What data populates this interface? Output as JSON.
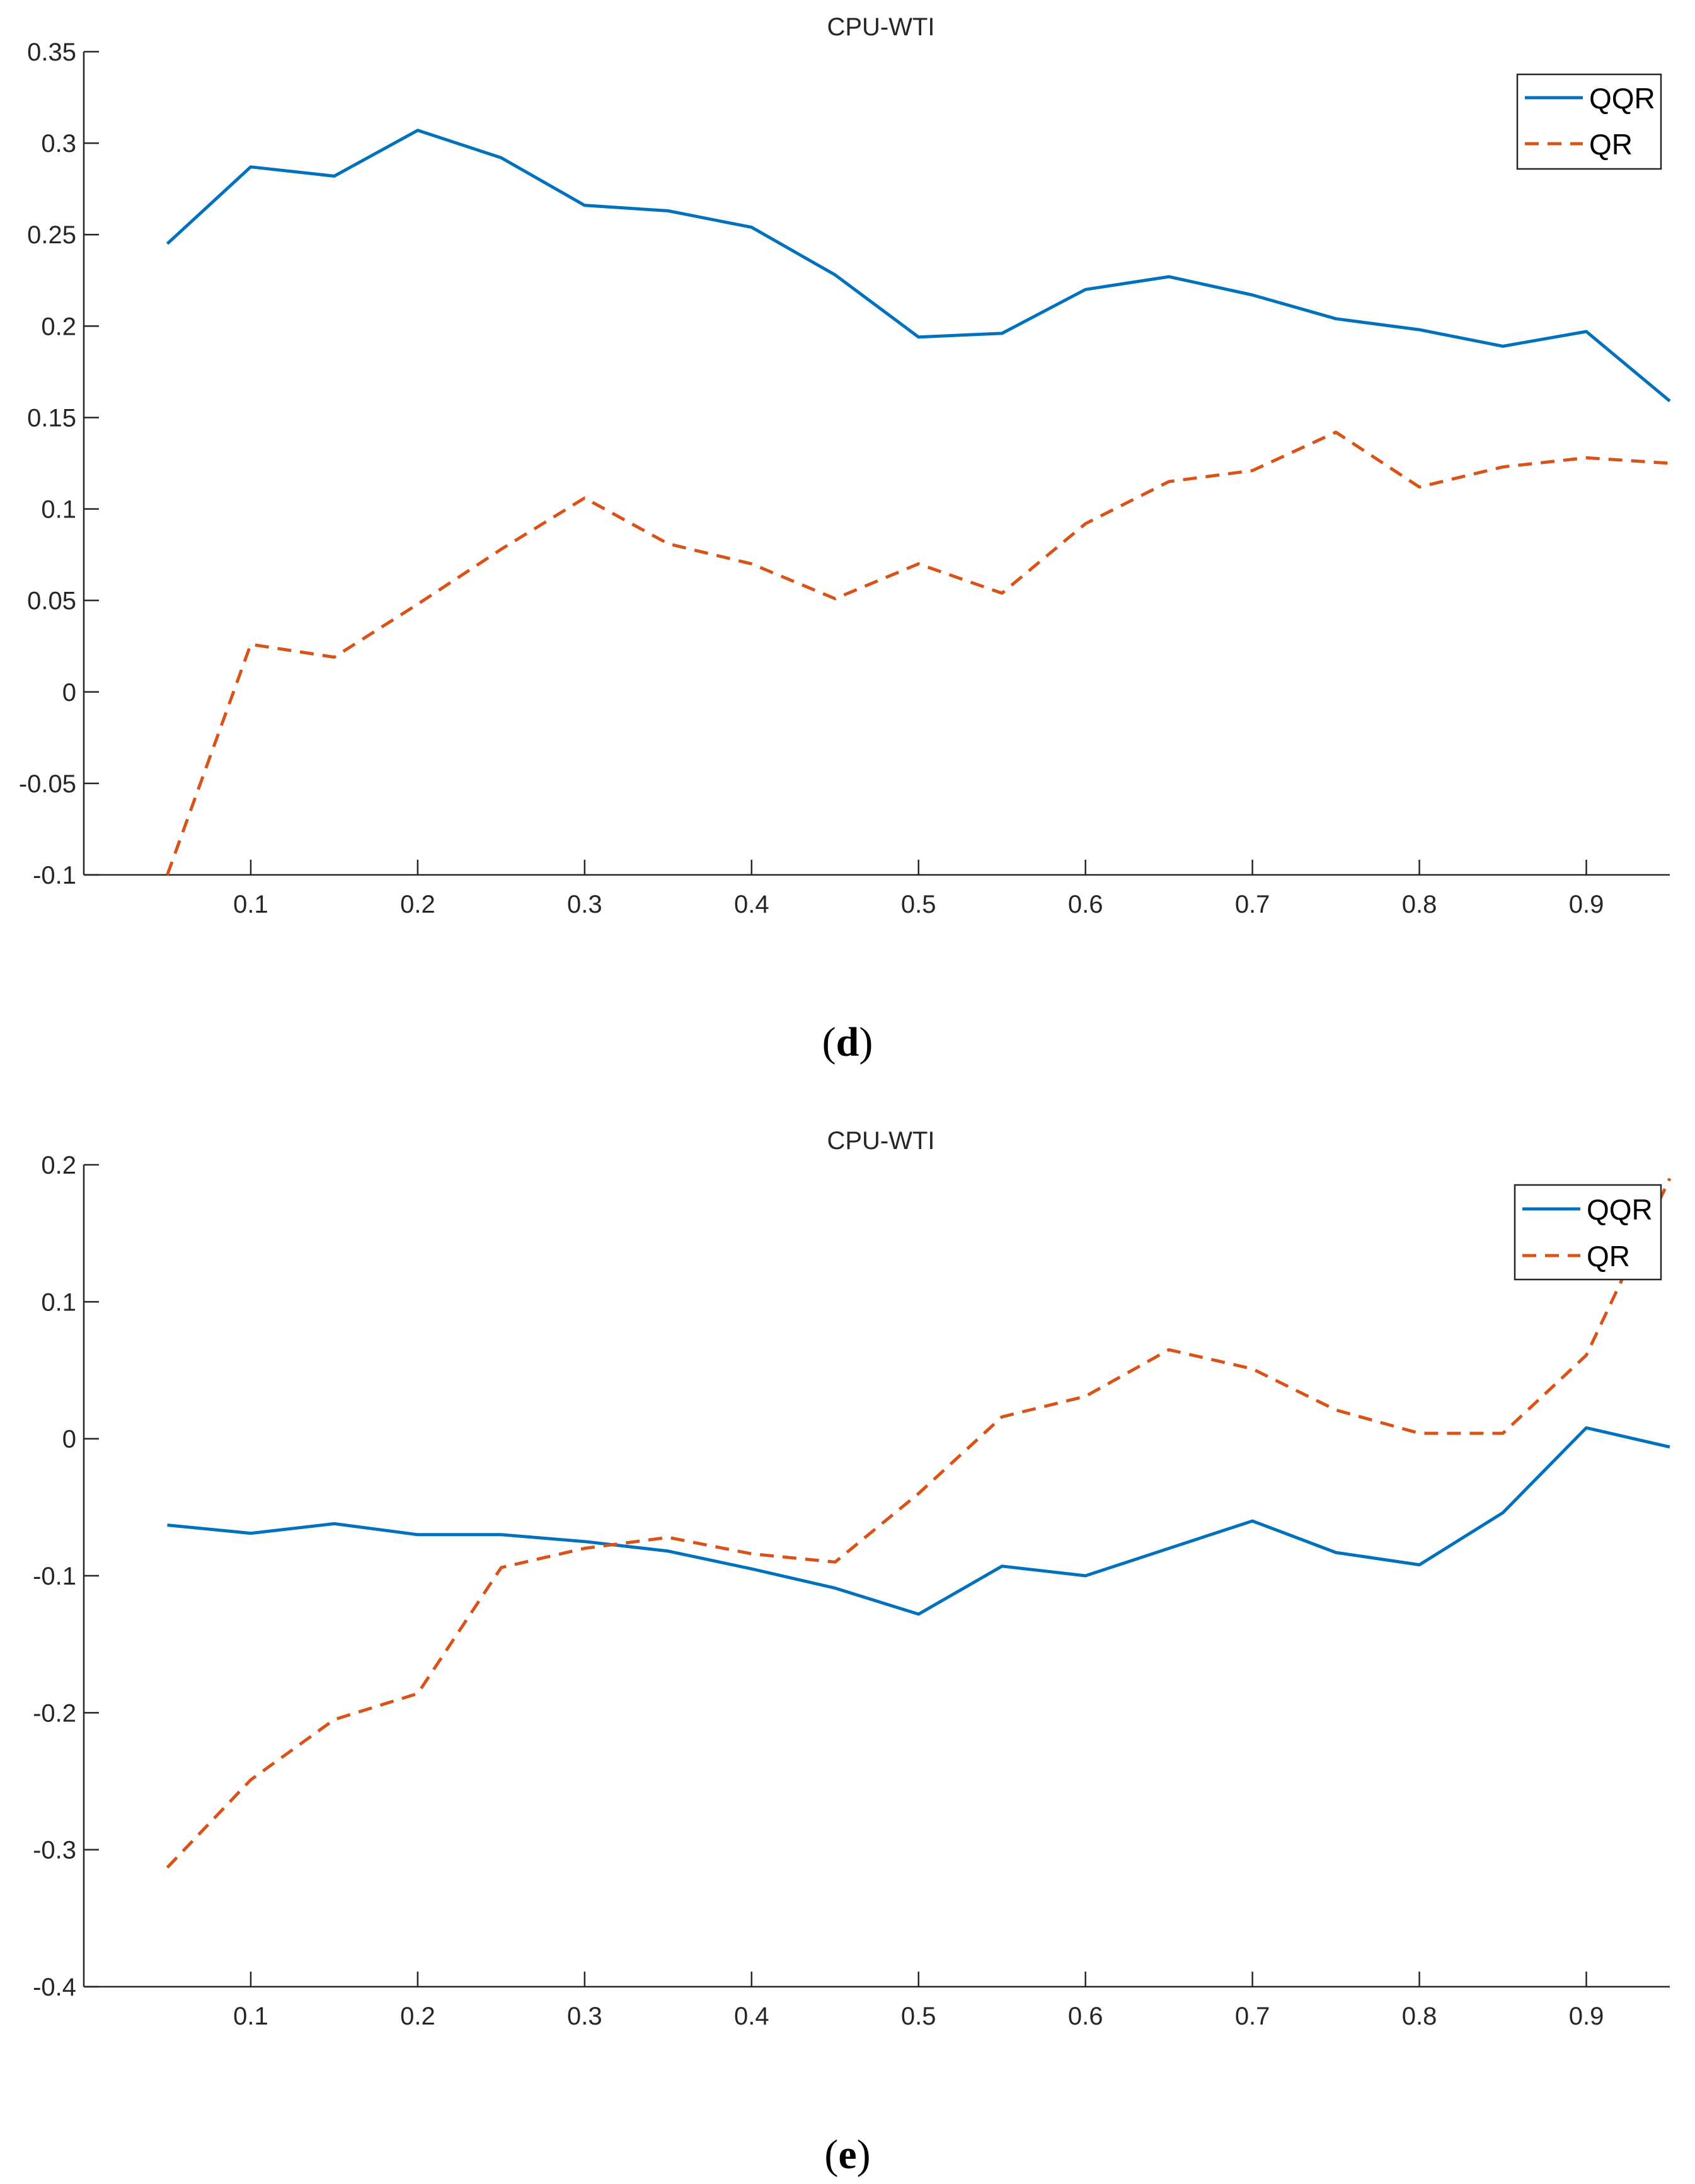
{
  "colors": {
    "qqr": "#0072BD",
    "qr": "#D95319",
    "axis": "#262626",
    "legend_border": "#262626"
  },
  "chart_data": [
    {
      "type": "line",
      "caption_letter": "d",
      "title": "CPU-WTI",
      "xlabel": "",
      "ylabel": "",
      "xlim": [
        0,
        0.95
      ],
      "ylim": [
        -0.1,
        0.35
      ],
      "x_ticks": [
        0.1,
        0.2,
        0.3,
        0.4,
        0.5,
        0.6,
        0.7,
        0.8,
        0.9
      ],
      "x_tick_labels": [
        "0.1",
        "0.2",
        "0.3",
        "0.4",
        "0.5",
        "0.6",
        "0.7",
        "0.8",
        "0.9"
      ],
      "y_ticks": [
        -0.1,
        -0.05,
        0,
        0.05,
        0.1,
        0.15,
        0.2,
        0.25,
        0.3,
        0.35
      ],
      "y_tick_labels": [
        "-0.1",
        "-0.05",
        "0",
        "0.05",
        "0.1",
        "0.15",
        "0.2",
        "0.25",
        "0.3",
        "0.35"
      ],
      "legend_position": "top-right",
      "x": [
        0.05,
        0.1,
        0.15,
        0.2,
        0.25,
        0.3,
        0.35,
        0.4,
        0.45,
        0.5,
        0.55,
        0.6,
        0.65,
        0.7,
        0.75,
        0.8,
        0.85,
        0.9,
        0.95
      ],
      "series": [
        {
          "name": "QQR",
          "style": "solid",
          "values": [
            0.245,
            0.287,
            0.282,
            0.307,
            0.292,
            0.266,
            0.263,
            0.254,
            0.228,
            0.194,
            0.196,
            0.22,
            0.227,
            0.217,
            0.204,
            0.198,
            0.189,
            0.197,
            0.159
          ]
        },
        {
          "name": "QR",
          "style": "dashed",
          "values": [
            -0.1,
            0.026,
            0.019,
            0.048,
            0.078,
            0.106,
            0.081,
            0.07,
            0.051,
            0.07,
            0.054,
            0.092,
            0.115,
            0.121,
            0.142,
            0.112,
            0.123,
            0.128,
            0.125
          ]
        }
      ]
    },
    {
      "type": "line",
      "caption_letter": "e",
      "title": "CPU-WTI",
      "xlabel": "",
      "ylabel": "",
      "xlim": [
        0,
        0.95
      ],
      "ylim": [
        -0.4,
        0.2
      ],
      "x_ticks": [
        0.1,
        0.2,
        0.3,
        0.4,
        0.5,
        0.6,
        0.7,
        0.8,
        0.9
      ],
      "x_tick_labels": [
        "0.1",
        "0.2",
        "0.3",
        "0.4",
        "0.5",
        "0.6",
        "0.7",
        "0.8",
        "0.9"
      ],
      "y_ticks": [
        -0.4,
        -0.3,
        -0.2,
        -0.1,
        0,
        0.1,
        0.2
      ],
      "y_tick_labels": [
        "-0.4",
        "-0.3",
        "-0.2",
        "-0.1",
        "0",
        "0.1",
        "0.2"
      ],
      "legend_position": "top-right",
      "x": [
        0.05,
        0.1,
        0.15,
        0.2,
        0.25,
        0.3,
        0.35,
        0.4,
        0.45,
        0.5,
        0.55,
        0.6,
        0.65,
        0.7,
        0.75,
        0.8,
        0.85,
        0.9,
        0.95
      ],
      "series": [
        {
          "name": "QQR",
          "style": "solid",
          "values": [
            -0.063,
            -0.069,
            -0.062,
            -0.07,
            -0.07,
            -0.075,
            -0.082,
            -0.095,
            -0.109,
            -0.128,
            -0.093,
            -0.1,
            -0.08,
            -0.06,
            -0.083,
            -0.092,
            -0.054,
            0.008,
            -0.006
          ]
        },
        {
          "name": "QR",
          "style": "dashed",
          "values": [
            -0.313,
            -0.249,
            -0.205,
            -0.186,
            -0.094,
            -0.08,
            -0.072,
            -0.084,
            -0.09,
            -0.04,
            0.016,
            0.031,
            0.065,
            0.051,
            0.021,
            0.004,
            0.004,
            0.061,
            0.19
          ]
        }
      ]
    }
  ]
}
